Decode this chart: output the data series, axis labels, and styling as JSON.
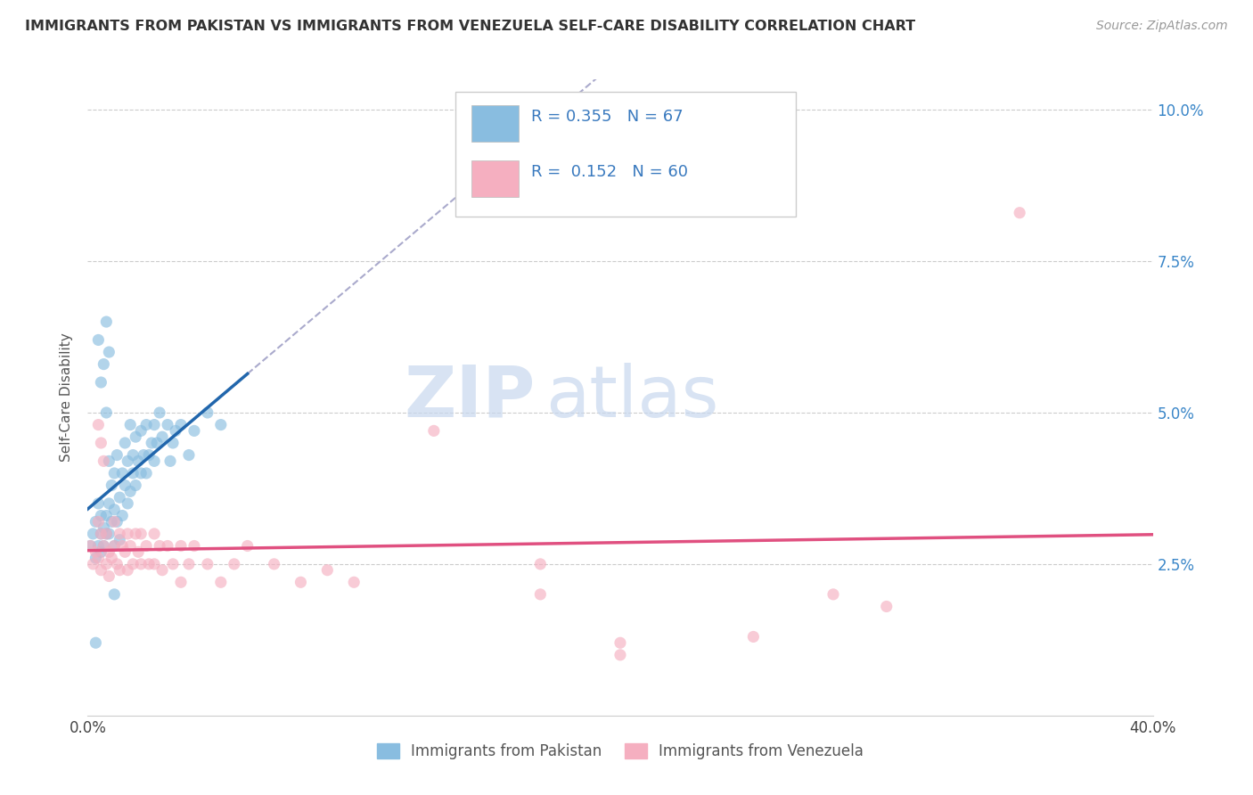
{
  "title": "IMMIGRANTS FROM PAKISTAN VS IMMIGRANTS FROM VENEZUELA SELF-CARE DISABILITY CORRELATION CHART",
  "source": "Source: ZipAtlas.com",
  "ylabel": "Self-Care Disability",
  "xlim": [
    0.0,
    0.4
  ],
  "ylim": [
    0.0,
    0.105
  ],
  "pakistan_color": "#89bde0",
  "venezuela_color": "#f5afc0",
  "pakistan_line_color": "#2166ac",
  "venezuela_line_color": "#e05080",
  "R_pakistan": 0.355,
  "N_pakistan": 67,
  "R_venezuela": 0.152,
  "N_venezuela": 60,
  "legend_label_pakistan": "Immigrants from Pakistan",
  "legend_label_venezuela": "Immigrants from Venezuela",
  "watermark_zip": "ZIP",
  "watermark_atlas": "atlas",
  "pakistan_scatter": [
    [
      0.001,
      0.028
    ],
    [
      0.002,
      0.03
    ],
    [
      0.003,
      0.026
    ],
    [
      0.003,
      0.032
    ],
    [
      0.004,
      0.028
    ],
    [
      0.004,
      0.035
    ],
    [
      0.005,
      0.03
    ],
    [
      0.005,
      0.033
    ],
    [
      0.005,
      0.027
    ],
    [
      0.006,
      0.031
    ],
    [
      0.006,
      0.028
    ],
    [
      0.007,
      0.033
    ],
    [
      0.007,
      0.03
    ],
    [
      0.007,
      0.05
    ],
    [
      0.008,
      0.03
    ],
    [
      0.008,
      0.035
    ],
    [
      0.008,
      0.042
    ],
    [
      0.009,
      0.032
    ],
    [
      0.009,
      0.038
    ],
    [
      0.01,
      0.028
    ],
    [
      0.01,
      0.034
    ],
    [
      0.01,
      0.04
    ],
    [
      0.011,
      0.032
    ],
    [
      0.011,
      0.043
    ],
    [
      0.012,
      0.029
    ],
    [
      0.012,
      0.036
    ],
    [
      0.013,
      0.033
    ],
    [
      0.013,
      0.04
    ],
    [
      0.014,
      0.038
    ],
    [
      0.014,
      0.045
    ],
    [
      0.015,
      0.035
    ],
    [
      0.015,
      0.042
    ],
    [
      0.016,
      0.037
    ],
    [
      0.016,
      0.048
    ],
    [
      0.017,
      0.04
    ],
    [
      0.017,
      0.043
    ],
    [
      0.018,
      0.038
    ],
    [
      0.018,
      0.046
    ],
    [
      0.019,
      0.042
    ],
    [
      0.02,
      0.04
    ],
    [
      0.02,
      0.047
    ],
    [
      0.021,
      0.043
    ],
    [
      0.022,
      0.04
    ],
    [
      0.022,
      0.048
    ],
    [
      0.023,
      0.043
    ],
    [
      0.024,
      0.045
    ],
    [
      0.025,
      0.042
    ],
    [
      0.025,
      0.048
    ],
    [
      0.026,
      0.045
    ],
    [
      0.027,
      0.05
    ],
    [
      0.028,
      0.046
    ],
    [
      0.03,
      0.048
    ],
    [
      0.031,
      0.042
    ],
    [
      0.032,
      0.045
    ],
    [
      0.033,
      0.047
    ],
    [
      0.035,
      0.048
    ],
    [
      0.038,
      0.043
    ],
    [
      0.04,
      0.047
    ],
    [
      0.045,
      0.05
    ],
    [
      0.05,
      0.048
    ],
    [
      0.004,
      0.062
    ],
    [
      0.005,
      0.055
    ],
    [
      0.006,
      0.058
    ],
    [
      0.007,
      0.065
    ],
    [
      0.008,
      0.06
    ],
    [
      0.003,
      0.012
    ],
    [
      0.01,
      0.02
    ]
  ],
  "venezuela_scatter": [
    [
      0.001,
      0.028
    ],
    [
      0.002,
      0.025
    ],
    [
      0.003,
      0.027
    ],
    [
      0.004,
      0.026
    ],
    [
      0.004,
      0.032
    ],
    [
      0.005,
      0.024
    ],
    [
      0.005,
      0.03
    ],
    [
      0.006,
      0.028
    ],
    [
      0.007,
      0.025
    ],
    [
      0.007,
      0.03
    ],
    [
      0.008,
      0.027
    ],
    [
      0.008,
      0.023
    ],
    [
      0.009,
      0.026
    ],
    [
      0.01,
      0.028
    ],
    [
      0.01,
      0.032
    ],
    [
      0.011,
      0.025
    ],
    [
      0.012,
      0.03
    ],
    [
      0.012,
      0.024
    ],
    [
      0.013,
      0.028
    ],
    [
      0.014,
      0.027
    ],
    [
      0.015,
      0.03
    ],
    [
      0.015,
      0.024
    ],
    [
      0.016,
      0.028
    ],
    [
      0.017,
      0.025
    ],
    [
      0.018,
      0.03
    ],
    [
      0.019,
      0.027
    ],
    [
      0.02,
      0.025
    ],
    [
      0.02,
      0.03
    ],
    [
      0.022,
      0.028
    ],
    [
      0.023,
      0.025
    ],
    [
      0.025,
      0.03
    ],
    [
      0.025,
      0.025
    ],
    [
      0.027,
      0.028
    ],
    [
      0.028,
      0.024
    ],
    [
      0.03,
      0.028
    ],
    [
      0.032,
      0.025
    ],
    [
      0.035,
      0.028
    ],
    [
      0.035,
      0.022
    ],
    [
      0.038,
      0.025
    ],
    [
      0.04,
      0.028
    ],
    [
      0.045,
      0.025
    ],
    [
      0.05,
      0.022
    ],
    [
      0.055,
      0.025
    ],
    [
      0.06,
      0.028
    ],
    [
      0.07,
      0.025
    ],
    [
      0.08,
      0.022
    ],
    [
      0.09,
      0.024
    ],
    [
      0.1,
      0.022
    ],
    [
      0.004,
      0.048
    ],
    [
      0.005,
      0.045
    ],
    [
      0.006,
      0.042
    ],
    [
      0.13,
      0.047
    ],
    [
      0.17,
      0.025
    ],
    [
      0.2,
      0.012
    ],
    [
      0.25,
      0.013
    ],
    [
      0.28,
      0.02
    ],
    [
      0.3,
      0.018
    ],
    [
      0.35,
      0.083
    ],
    [
      0.17,
      0.02
    ],
    [
      0.2,
      0.01
    ]
  ]
}
